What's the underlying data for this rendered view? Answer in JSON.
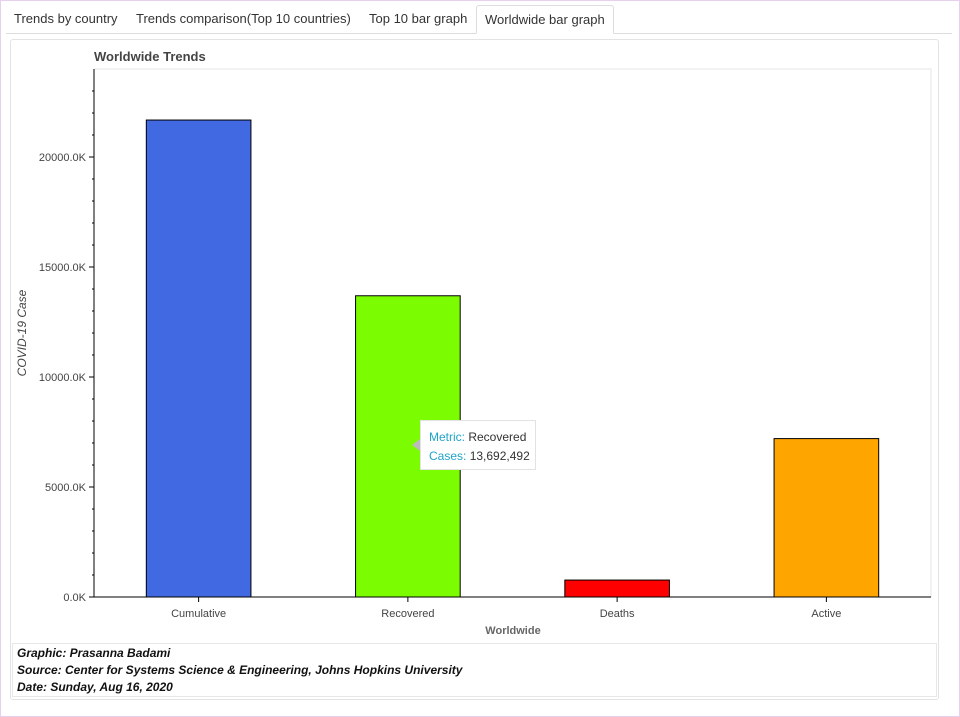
{
  "tabs": [
    {
      "label": "Trends by country",
      "active": false
    },
    {
      "label": "Trends comparison(Top 10 countries)",
      "active": false
    },
    {
      "label": "Top 10 bar graph",
      "active": false
    },
    {
      "label": "Worldwide bar graph",
      "active": true
    }
  ],
  "tooltip": {
    "metric_key": "Metric:",
    "metric_value": "Recovered",
    "cases_key": "Cases:",
    "cases_value": "13,692,492"
  },
  "footer": {
    "graphic": "Graphic: Prasanna Badami",
    "source": "Source: Center for Systems Science & Engineering, Johns Hopkins University",
    "date": "Date: Sunday, Aug 16, 2020"
  },
  "chart_data": {
    "type": "bar",
    "title": "Worldwide Trends",
    "xlabel": "Worldwide",
    "ylabel": "COVID-19 Case",
    "categories": [
      "Cumulative",
      "Recovered",
      "Deaths",
      "Active"
    ],
    "values": [
      21680000,
      13692492,
      770000,
      7200000
    ],
    "colors": [
      "#4169e1",
      "#7cfc00",
      "#ff0000",
      "#ffa500"
    ],
    "yticks": [
      0,
      5000000,
      10000000,
      15000000,
      20000000
    ],
    "ytick_labels": [
      "0.0K",
      "5000.0K",
      "10000.0K",
      "15000.0K",
      "20000.0K"
    ],
    "ylim": [
      0,
      24000000
    ],
    "grid": false,
    "legend": "none"
  }
}
